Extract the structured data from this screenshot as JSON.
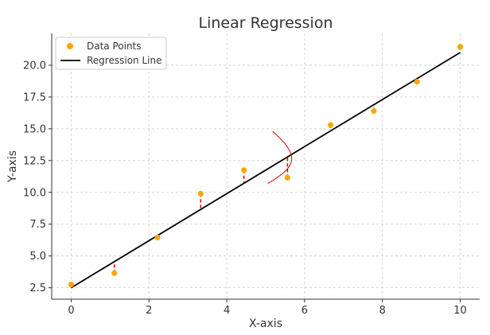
{
  "chart_data": {
    "type": "scatter",
    "title": "Linear Regression",
    "xlabel": "X-axis",
    "ylabel": "Y-axis",
    "xlim": [
      -0.5,
      10.5
    ],
    "ylim": [
      1.6,
      22.5
    ],
    "xticks": [
      0,
      2,
      4,
      6,
      8,
      10
    ],
    "yticks": [
      2.5,
      5.0,
      7.5,
      10.0,
      12.5,
      15.0,
      17.5,
      20.0
    ],
    "grid": true,
    "legend_position": "top-left",
    "series": [
      {
        "name": "Data Points",
        "kind": "scatter",
        "color": "#ffa500",
        "points": [
          {
            "x": 0.0,
            "y": 2.75
          },
          {
            "x": 1.11,
            "y": 3.65
          },
          {
            "x": 2.22,
            "y": 6.45
          },
          {
            "x": 3.33,
            "y": 9.9
          },
          {
            "x": 4.44,
            "y": 11.75
          },
          {
            "x": 5.56,
            "y": 11.15
          },
          {
            "x": 6.67,
            "y": 15.3
          },
          {
            "x": 7.78,
            "y": 16.4
          },
          {
            "x": 8.89,
            "y": 18.7
          },
          {
            "x": 10.0,
            "y": 21.45
          }
        ]
      },
      {
        "name": "Regression Line",
        "kind": "line",
        "color": "#000000",
        "points": [
          {
            "x": 0.0,
            "y": 2.5
          },
          {
            "x": 10.0,
            "y": 21.0
          }
        ]
      }
    ],
    "residuals": {
      "color": "#dd0000",
      "style": "dashed"
    },
    "annotation": {
      "kind": "red-curved-mark",
      "color": "#dd0000"
    }
  }
}
